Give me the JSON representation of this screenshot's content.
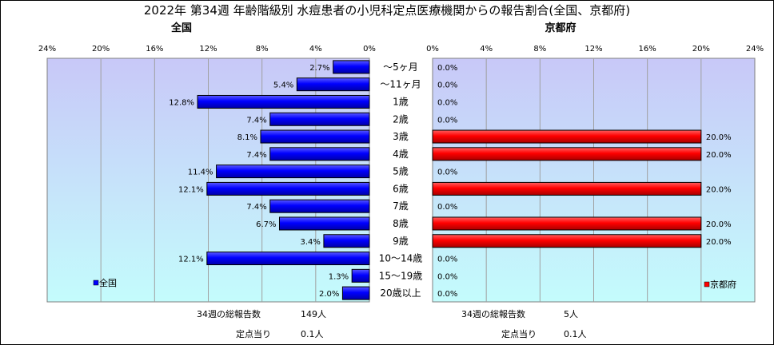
{
  "title": "2022年 第34週 年齢階級別 水痘患者の小児科定点医療機関からの報告割合(全国、京都府)",
  "colors": {
    "national_bar": "#0000ff",
    "kyoto_bar": "#ff0000",
    "plot_bg_top": "#c8c8f8",
    "plot_bg_bottom": "#c4fcfc",
    "gridline": "#a0a0a0"
  },
  "footer": {
    "national_total_label": "34週の総報告数",
    "national_total_value": "149人",
    "national_per_label": "定点当り",
    "national_per_value": "0.1人",
    "kyoto_total_label": "34週の総報告数",
    "kyoto_total_value": "5人",
    "kyoto_per_label": "定点当り",
    "kyoto_per_value": "0.1人"
  },
  "chart_data": [
    {
      "type": "bar",
      "orientation": "horizontal",
      "direction": "right-to-left",
      "panel_title": "全国",
      "legend": "全国",
      "legend_placement": "bottom-left",
      "grid": true,
      "xlim": [
        0,
        24
      ],
      "x_ticks": [
        "24%",
        "20%",
        "16%",
        "12%",
        "8%",
        "4%",
        "0%"
      ],
      "categories": [
        "～5ヶ月",
        "～11ヶ月",
        "1歳",
        "2歳",
        "3歳",
        "4歳",
        "5歳",
        "6歳",
        "7歳",
        "8歳",
        "9歳",
        "10～14歳",
        "15～19歳",
        "20歳以上"
      ],
      "values": [
        2.7,
        5.4,
        12.8,
        7.4,
        8.1,
        7.4,
        11.4,
        12.1,
        7.4,
        6.7,
        3.4,
        12.1,
        1.3,
        2.0
      ],
      "value_labels": [
        "2.7%",
        "5.4%",
        "12.8%",
        "7.4%",
        "8.1%",
        "7.4%",
        "11.4%",
        "12.1%",
        "7.4%",
        "6.7%",
        "3.4%",
        "12.1%",
        "1.3%",
        "2.0%"
      ]
    },
    {
      "type": "bar",
      "orientation": "horizontal",
      "direction": "left-to-right",
      "panel_title": "京都府",
      "legend": "京都府",
      "legend_placement": "bottom-right",
      "grid": true,
      "xlim": [
        0,
        24
      ],
      "x_ticks": [
        "0%",
        "4%",
        "8%",
        "12%",
        "16%",
        "20%",
        "24%"
      ],
      "categories": [
        "～5ヶ月",
        "～11ヶ月",
        "1歳",
        "2歳",
        "3歳",
        "4歳",
        "5歳",
        "6歳",
        "7歳",
        "8歳",
        "9歳",
        "10～14歳",
        "15～19歳",
        "20歳以上"
      ],
      "values": [
        0.0,
        0.0,
        0.0,
        0.0,
        20.0,
        20.0,
        0.0,
        20.0,
        0.0,
        20.0,
        20.0,
        0.0,
        0.0,
        0.0
      ],
      "value_labels": [
        "0.0%",
        "0.0%",
        "0.0%",
        "0.0%",
        "20.0%",
        "20.0%",
        "0.0%",
        "20.0%",
        "0.0%",
        "20.0%",
        "20.0%",
        "0.0%",
        "0.0%",
        "0.0%"
      ]
    }
  ]
}
